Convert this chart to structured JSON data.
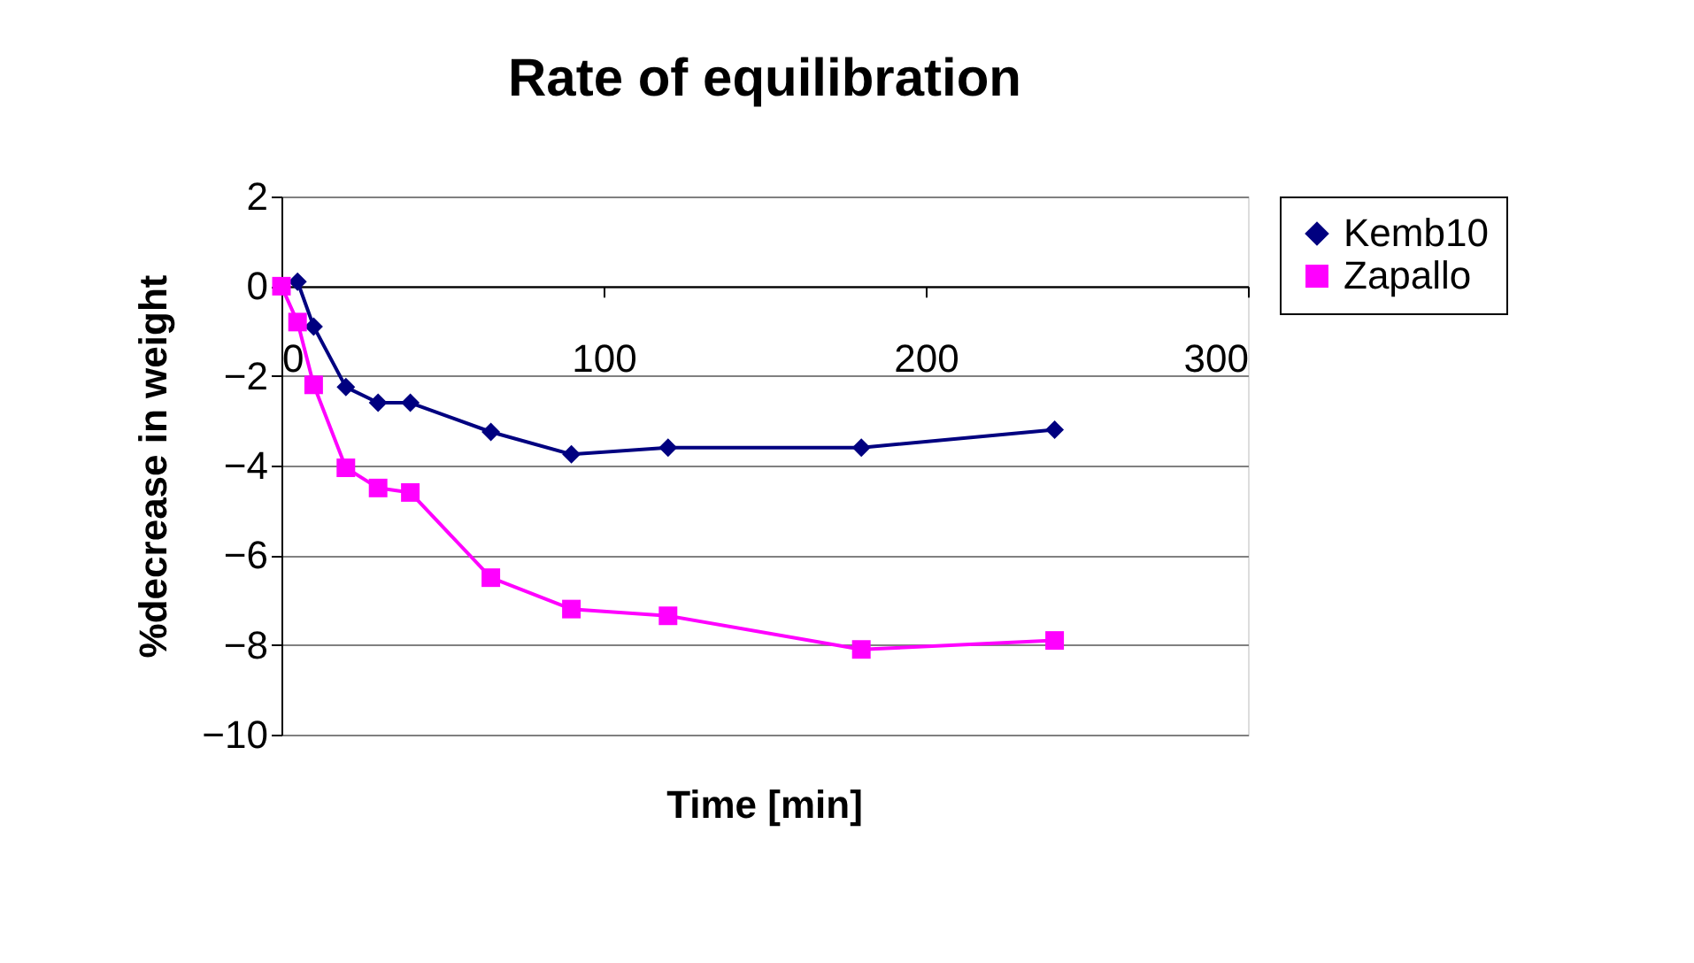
{
  "chart_data": {
    "type": "line",
    "title": "Rate of equilibration",
    "xlabel": "Time [min]",
    "ylabel": "%decrease in weight",
    "series": [
      {
        "name": "Kemb10",
        "color": "#000080",
        "marker": "diamond",
        "x": [
          5,
          10,
          20,
          30,
          40,
          65,
          90,
          120,
          180,
          240
        ],
        "values": [
          0.1,
          -0.9,
          -2.25,
          -2.6,
          -2.6,
          -3.25,
          -3.75,
          -3.6,
          -3.6,
          -3.2
        ]
      },
      {
        "name": "Zapallo",
        "color": "#ff00ff",
        "marker": "square",
        "x": [
          0,
          5,
          10,
          20,
          30,
          40,
          65,
          90,
          120,
          180,
          240
        ],
        "values": [
          0,
          -0.8,
          -2.2,
          -4.05,
          -4.5,
          -4.6,
          -6.5,
          -7.2,
          -7.35,
          -8.1,
          -7.9
        ]
      }
    ],
    "xlim": [
      0,
      300
    ],
    "xticks": [
      0,
      100,
      200,
      300
    ],
    "ylim": [
      -10,
      2
    ],
    "yticks": [
      -10,
      -8,
      -6,
      -4,
      -2,
      0,
      2
    ],
    "grid": "y",
    "legend": "right",
    "line_style": "solid"
  }
}
